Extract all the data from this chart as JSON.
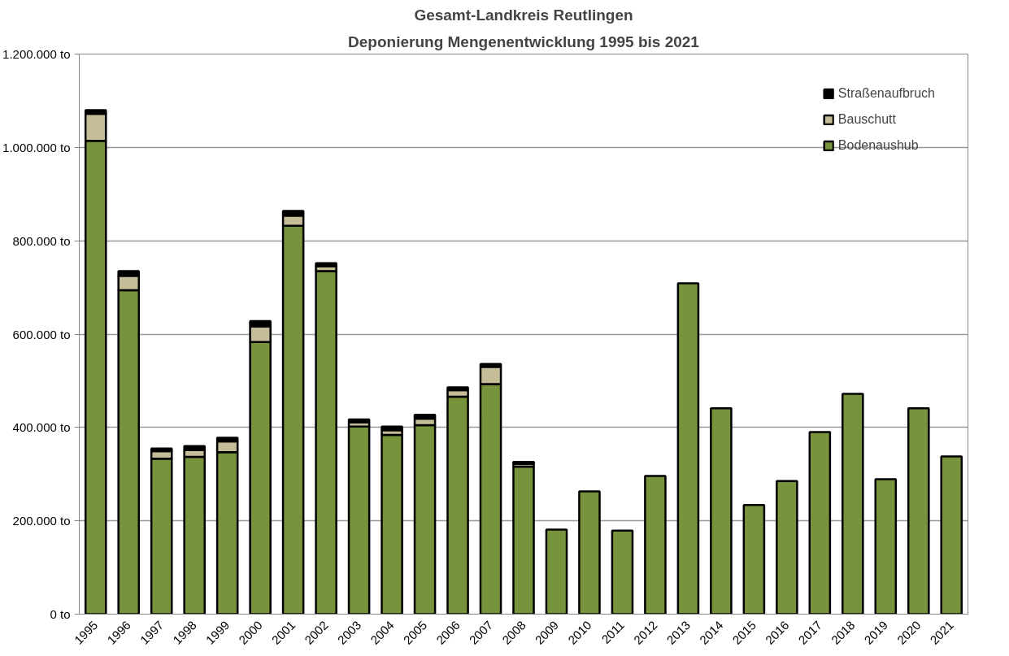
{
  "chart_data": {
    "type": "bar",
    "title": "Gesamt-Landkreis Reutlingen",
    "subtitle": "Deponierung Mengenentwicklung 1995 bis 2021",
    "categories": [
      "1995",
      "1996",
      "1997",
      "1998",
      "1999",
      "2000",
      "2001",
      "2002",
      "2003",
      "2004",
      "2005",
      "2006",
      "2007",
      "2008",
      "2009",
      "2010",
      "2011",
      "2012",
      "2013",
      "2014",
      "2015",
      "2016",
      "2017",
      "2018",
      "2019",
      "2020",
      "2021"
    ],
    "stacked": true,
    "series": [
      {
        "name": "Bodenaushub",
        "color": "#77933c",
        "values": [
          1014000,
          694000,
          333000,
          337000,
          347000,
          583000,
          832000,
          735000,
          402000,
          384000,
          405000,
          466000,
          493000,
          316000,
          181000,
          263000,
          179000,
          296000,
          709000,
          441000,
          234000,
          285000,
          390000,
          472000,
          289000,
          441000,
          338000
        ]
      },
      {
        "name": "Bauschutt",
        "color": "#c4bd97",
        "values": [
          58000,
          31000,
          16000,
          15000,
          23000,
          33000,
          22000,
          10000,
          9000,
          10000,
          14000,
          14000,
          37000,
          6000,
          null,
          null,
          null,
          null,
          null,
          null,
          null,
          null,
          null,
          null,
          null,
          null,
          null
        ]
      },
      {
        "name": "Straßenaufbruch",
        "color": "#000000",
        "values": [
          8000,
          10000,
          6000,
          8000,
          8000,
          12000,
          10000,
          7000,
          6000,
          8000,
          8000,
          6000,
          6000,
          4000,
          null,
          null,
          null,
          null,
          null,
          null,
          null,
          null,
          null,
          null,
          null,
          null,
          null
        ]
      }
    ],
    "ylim": [
      0,
      1200000
    ],
    "yticks": [
      {
        "value": 0,
        "label": "0 to"
      },
      {
        "value": 200000,
        "label": "200.000 to"
      },
      {
        "value": 400000,
        "label": "400.000 to"
      },
      {
        "value": 600000,
        "label": "600.000 to"
      },
      {
        "value": 800000,
        "label": "800.000 to"
      },
      {
        "value": 1000000,
        "label": "1.000.000 to"
      },
      {
        "value": 1200000,
        "label": "1.200.000 to"
      }
    ],
    "grid": "y",
    "legend": "top right"
  }
}
